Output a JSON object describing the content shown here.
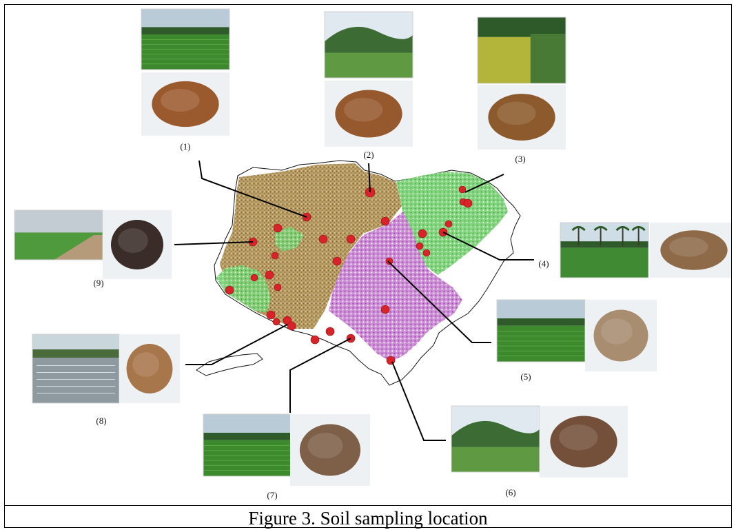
{
  "caption": "Figure 3.  Soil sampling location",
  "colors": {
    "map_brown": "#9c7b3f",
    "map_green": "#5fc35a",
    "map_purple": "#b45bc0",
    "sample_point": "#d9232a",
    "leader_line": "#000000"
  },
  "samples": [
    {
      "label": "(1)",
      "soil_color": "#9b5a2e",
      "scene": "rice-field"
    },
    {
      "label": "(2)",
      "soil_color": "#96582d",
      "scene": "hillside-field"
    },
    {
      "label": "(3)",
      "soil_color": "#8c5a2c",
      "scene": "ripening-rice"
    },
    {
      "label": "(4)",
      "soil_color": "#8e6a48",
      "scene": "palm-rice-field"
    },
    {
      "label": "(5)",
      "soil_color": "#a88d71",
      "scene": "rice-field"
    },
    {
      "label": "(6)",
      "soil_color": "#74503a",
      "scene": "hillside-field"
    },
    {
      "label": "(7)",
      "soil_color": "#7e6048",
      "scene": "rice-field"
    },
    {
      "label": "(8)",
      "soil_color": "#a8764b",
      "scene": "flooded-field"
    },
    {
      "label": "(9)",
      "soil_color": "#3a2c28",
      "scene": "dirt-road-field"
    }
  ]
}
